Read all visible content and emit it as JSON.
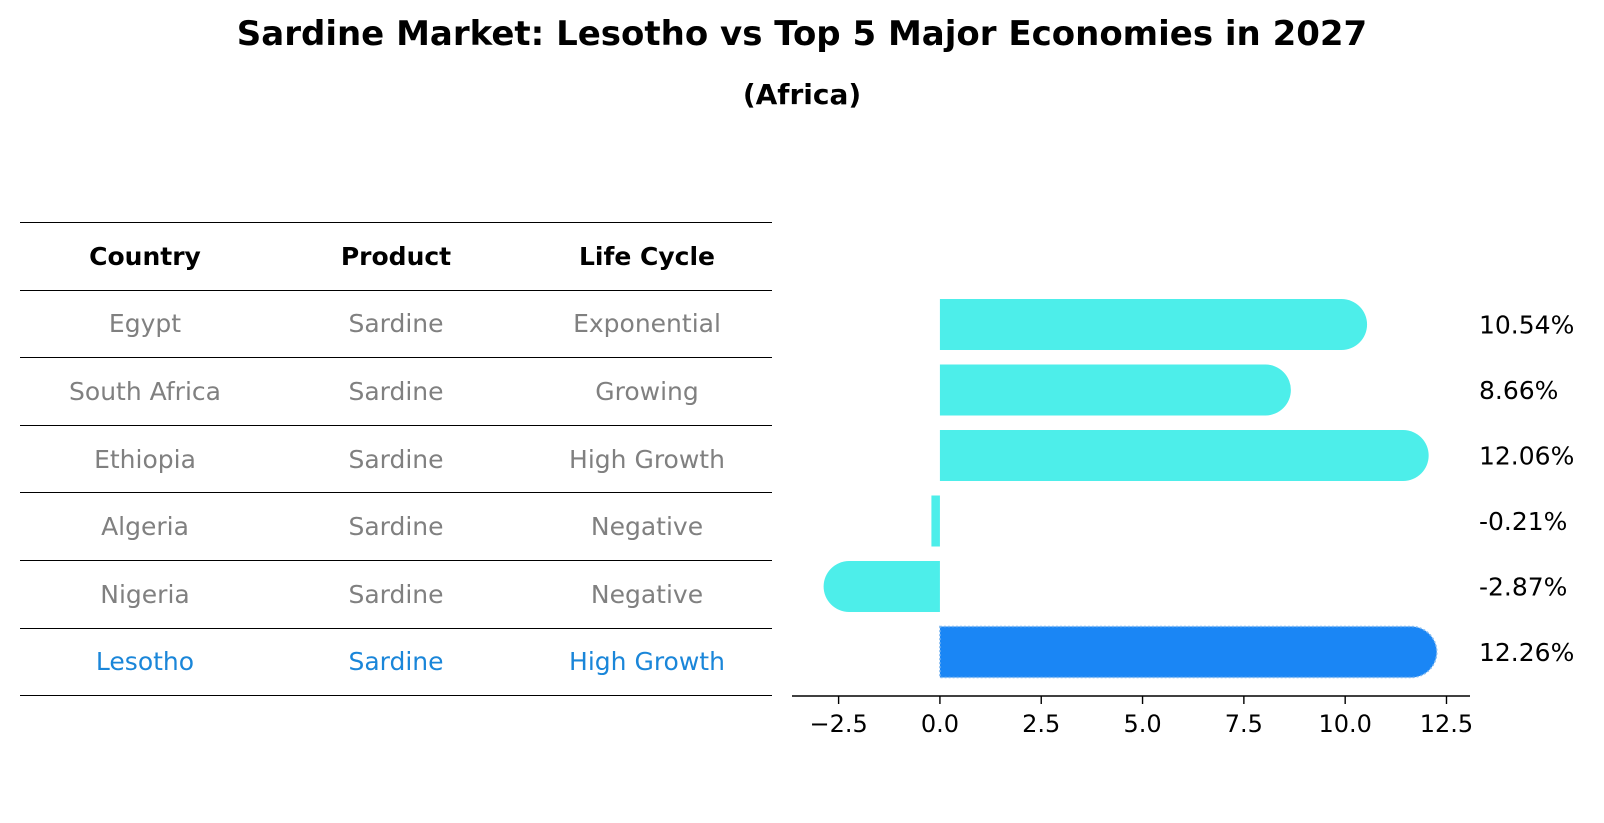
{
  "title": "Sardine Market: Lesotho vs Top 5 Major Economies in 2027",
  "subtitle": "(Africa)",
  "table": {
    "headers": [
      "Country",
      "Product",
      "Life Cycle"
    ],
    "rows": [
      {
        "country": "Egypt",
        "product": "Sardine",
        "life_cycle": "Exponential"
      },
      {
        "country": "South Africa",
        "product": "Sardine",
        "life_cycle": "Growing"
      },
      {
        "country": "Ethiopia",
        "product": "Sardine",
        "life_cycle": "High Growth"
      },
      {
        "country": "Algeria",
        "product": "Sardine",
        "life_cycle": "Negative"
      },
      {
        "country": "Nigeria",
        "product": "Sardine",
        "life_cycle": "Negative"
      },
      {
        "country": "Lesotho",
        "product": "Sardine",
        "life_cycle": "High Growth"
      }
    ],
    "text_color": "#808080",
    "highlight_color": "#1a86d9"
  },
  "chart_data": {
    "type": "bar",
    "orientation": "horizontal",
    "categories": [
      "Egypt",
      "South Africa",
      "Ethiopia",
      "Algeria",
      "Nigeria",
      "Lesotho"
    ],
    "values": [
      10.54,
      8.66,
      12.06,
      -0.21,
      -2.87,
      12.26
    ],
    "labels": [
      "10.54%",
      "8.66%",
      "12.06%",
      "-0.21%",
      "-2.87%",
      "12.26%"
    ],
    "highlight_index": 5,
    "colors": {
      "default": "#4deeea",
      "highlight": "#1a86f5"
    },
    "xticks": [
      -2.5,
      0.0,
      2.5,
      5.0,
      7.5,
      10.0,
      12.5
    ],
    "xtick_labels": [
      "−2.5",
      "0.0",
      "2.5",
      "5.0",
      "7.5",
      "10.0",
      "12.5"
    ],
    "xlim": [
      -3.65,
      13.08
    ],
    "xlabel": "",
    "ylabel": "",
    "grid": false
  }
}
